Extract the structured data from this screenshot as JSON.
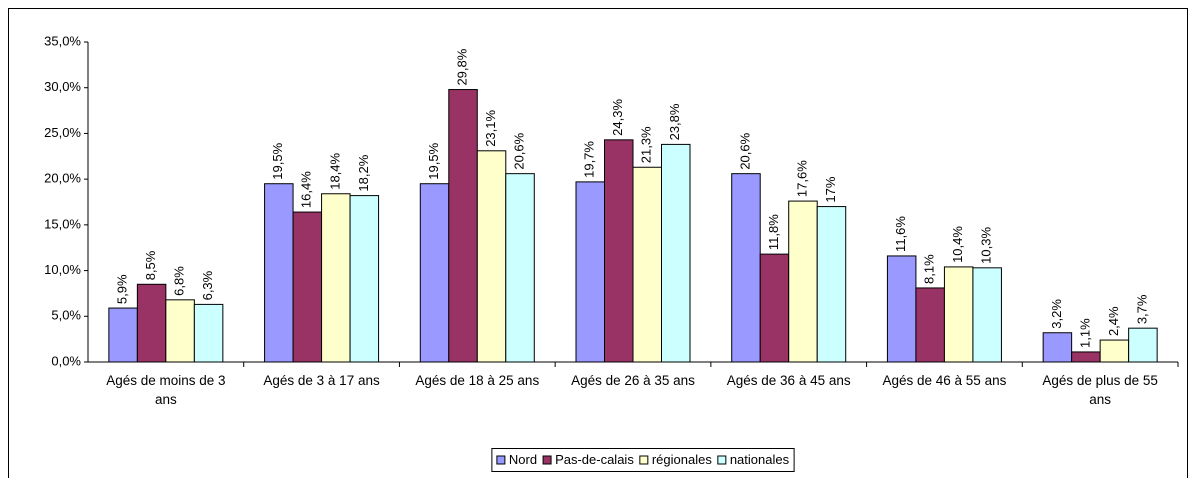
{
  "chart_data": {
    "type": "bar",
    "categories": [
      "Agés de moins de 3 ans",
      "Agés de 3 à 17 ans",
      "Agés de 18 à 25 ans",
      "Agés de 26 à 35 ans",
      "Agés de 36 à 45 ans",
      "Agés de 46 à 55 ans",
      "Agés de plus de 55 ans"
    ],
    "series": [
      {
        "name": "Nord",
        "color": "#9999ff",
        "values": [
          5.9,
          19.5,
          19.5,
          19.7,
          20.6,
          11.6,
          3.2
        ],
        "value_labels": [
          "5,9%",
          "19,5%",
          "19,5%",
          "19,7%",
          "20,6%",
          "11,6%",
          "3,2%"
        ]
      },
      {
        "name": "Pas-de-calais",
        "color": "#993366",
        "values": [
          8.5,
          16.4,
          29.8,
          24.3,
          11.8,
          8.1,
          1.1
        ],
        "value_labels": [
          "8,5%",
          "16,4%",
          "29,8%",
          "24,3%",
          "11,8%",
          "8,1%",
          "1,1%"
        ]
      },
      {
        "name": "régionales",
        "color": "#ffffcc",
        "values": [
          6.8,
          18.4,
          23.1,
          21.3,
          17.6,
          10.4,
          2.4
        ],
        "value_labels": [
          "6,8%",
          "18,4%",
          "23,1%",
          "21,3%",
          "17,6%",
          "10,4%",
          "2,4%"
        ]
      },
      {
        "name": "nationales",
        "color": "#ccffff",
        "values": [
          6.3,
          18.2,
          20.6,
          23.8,
          17,
          10.3,
          3.7
        ],
        "value_labels": [
          "6,3%",
          "18,2%",
          "20,6%",
          "23,8%",
          "17%",
          "10,3%",
          "3,7%"
        ]
      }
    ],
    "ylim": [
      0,
      35
    ],
    "yticks": [
      {
        "value": 0,
        "label": "0,0%"
      },
      {
        "value": 5,
        "label": "5,0%"
      },
      {
        "value": 10,
        "label": "10,0%"
      },
      {
        "value": 15,
        "label": "15,0%"
      },
      {
        "value": 20,
        "label": "20,0%"
      },
      {
        "value": 25,
        "label": "25,0%"
      },
      {
        "value": 30,
        "label": "30,0%"
      },
      {
        "value": 35,
        "label": "35,0%"
      }
    ],
    "grid": false,
    "legend": "bottom"
  }
}
